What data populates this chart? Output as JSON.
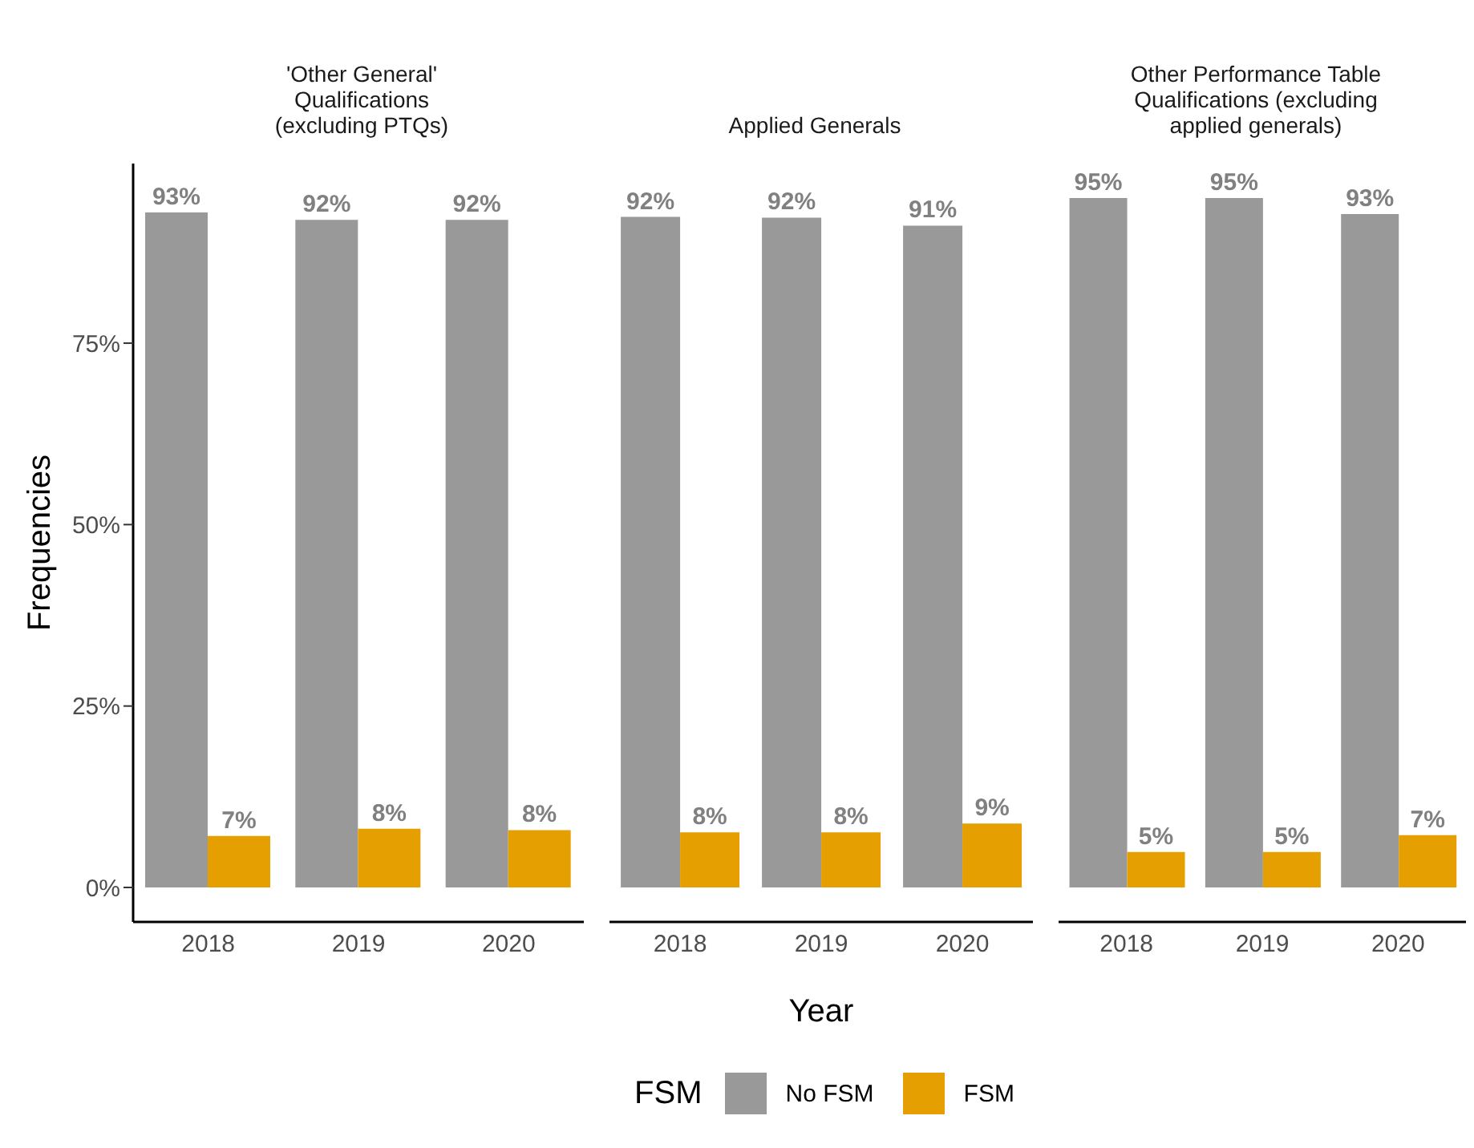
{
  "chart_data": [
    {
      "type": "bar",
      "title": "'Other General' Qualifications (excluding PTQs)",
      "ylabel": "Frequencies",
      "categories": [
        "2018",
        "2019",
        "2020"
      ],
      "series": [
        {
          "color": "#999999",
          "values": [
            93,
            92,
            92
          ],
          "value_labels": [
            "93%",
            "92%",
            "92%"
          ]
        },
        {
          "color": "#e69f00",
          "values": [
            7.1,
            8.1,
            7.9
          ],
          "value_labels": [
            "7%",
            "8%",
            "8%"
          ]
        }
      ],
      "ylim": [
        -4.75,
        99.75
      ],
      "yticks": [
        {
          "value": 0,
          "label": "0%"
        },
        {
          "value": 25,
          "label": "25%"
        },
        {
          "value": 50,
          "label": "50%"
        },
        {
          "value": 75,
          "label": "75%"
        }
      ],
      "grid": false,
      "legend": false
    },
    {
      "type": "bar",
      "title": "Applied Generals",
      "xlabel": "Year",
      "legend_title": "FSM",
      "categories": [
        "2018",
        "2019",
        "2020"
      ],
      "series": [
        {
          "name": "No FSM",
          "color": "#999999",
          "values": [
            92.4,
            92.3,
            91.2
          ],
          "value_labels": [
            "92%",
            "92%",
            "91%"
          ]
        },
        {
          "name": "FSM",
          "color": "#e69f00",
          "values": [
            7.6,
            7.6,
            8.8
          ],
          "value_labels": [
            "8%",
            "8%",
            "9%"
          ]
        }
      ],
      "tick_labels": "x",
      "grid": false,
      "legend": "bottom"
    },
    {
      "type": "bar",
      "title": "Other Performance Table Qualifications (excluding applied generals)",
      "categories": [
        "2018",
        "2019",
        "2020"
      ],
      "series": [
        {
          "color": "#999999",
          "values": [
            95,
            95,
            92.8
          ],
          "value_labels": [
            "95%",
            "95%",
            "93%"
          ]
        },
        {
          "color": "#e69f00",
          "values": [
            4.9,
            4.9,
            7.2
          ],
          "value_labels": [
            "5%",
            "5%",
            "7%"
          ]
        }
      ],
      "tick_labels": "x",
      "grid": false,
      "legend": false
    }
  ]
}
